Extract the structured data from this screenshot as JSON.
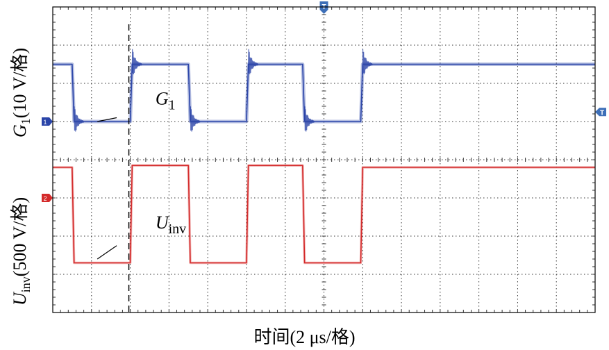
{
  "chart_data": {
    "type": "line",
    "x_label": "时间(2 μs/格)",
    "x_per_div_us": 2,
    "x_divisions": 14,
    "y_divisions": 8,
    "y_labels": [
      {
        "sym": "G",
        "sub": "1",
        "unit": "(10 V/格)"
      },
      {
        "sym": "U",
        "sub": "inv",
        "unit": "(500 V/格)"
      }
    ],
    "series": [
      {
        "name": "G1",
        "channel": "1",
        "color": "#2a44a8",
        "annotation": {
          "sym": "G",
          "sub": "1"
        },
        "x_us": [
          0,
          1.0,
          1.1,
          4.0,
          4.1,
          7.0,
          7.1,
          10.0,
          10.1,
          12.9,
          13.0,
          15.9,
          16.0,
          28.0
        ],
        "y_div": [
          6.5,
          6.5,
          5.0,
          5.0,
          6.5,
          6.5,
          5.0,
          5.0,
          6.5,
          6.5,
          5.0,
          5.0,
          6.5,
          6.5
        ]
      },
      {
        "name": "Uinv",
        "channel": "2",
        "color": "#d42a2a",
        "annotation": {
          "sym": "U",
          "sub": "inv"
        },
        "x_us": [
          0,
          1.0,
          1.1,
          4.0,
          4.1,
          7.0,
          7.1,
          10.0,
          10.1,
          12.9,
          13.0,
          15.9,
          16.0,
          28.0
        ],
        "y_div": [
          3.8,
          3.8,
          1.3,
          1.3,
          3.85,
          3.85,
          1.3,
          1.3,
          3.85,
          3.85,
          1.3,
          1.3,
          3.8,
          3.8
        ]
      }
    ],
    "markers": {
      "trigger": "T",
      "cursor_x_us": 4.0
    },
    "grid": true
  }
}
